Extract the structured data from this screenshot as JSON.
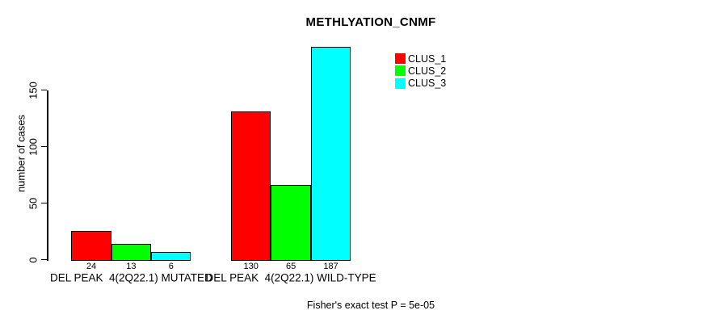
{
  "chart_data": {
    "type": "bar",
    "title": "METHLYATION_CNMF",
    "ylabel": "number of cases",
    "xlabel": "",
    "categories": [
      "DEL PEAK  4(2Q22.1) MUTATED",
      "DEL PEAK  4(2Q22.1) WILD-TYPE"
    ],
    "series": [
      {
        "name": "CLUS_1",
        "color": "#ff0000",
        "values": [
          24,
          130
        ]
      },
      {
        "name": "CLUS_2",
        "color": "#00ff00",
        "values": [
          13,
          65
        ]
      },
      {
        "name": "CLUS_3",
        "color": "#00ffff",
        "values": [
          6,
          187
        ]
      }
    ],
    "show_bar_values": true,
    "bar_border_color": "#000000",
    "yticks": [
      0,
      50,
      100,
      150
    ],
    "ylim": [
      0,
      187
    ],
    "grid": false,
    "legend_position": "top-right",
    "footnote": "Fisher's exact test P = 5e-05"
  }
}
